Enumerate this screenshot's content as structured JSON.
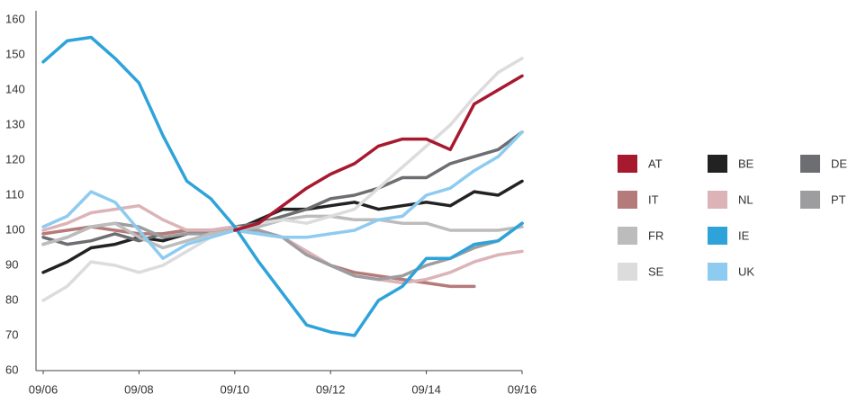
{
  "chart_data": {
    "type": "line",
    "categories": [
      "09/06",
      null,
      null,
      null,
      "09/08",
      null,
      null,
      null,
      "09/10",
      null,
      null,
      null,
      "09/12",
      null,
      null,
      null,
      "09/14",
      null,
      null,
      null,
      "09/16"
    ],
    "ylim": [
      60,
      160
    ],
    "yticks": [
      60,
      70,
      80,
      90,
      100,
      110,
      120,
      130,
      140,
      150,
      160
    ],
    "legend": "right",
    "series": [
      {
        "name": "AT",
        "color": "#a6192e",
        "values": [
          null,
          null,
          null,
          null,
          null,
          null,
          null,
          null,
          100,
          102,
          107,
          112,
          116,
          119,
          124,
          126,
          126,
          123,
          136,
          140,
          144
        ]
      },
      {
        "name": "BE",
        "color": "#222222",
        "values": [
          88,
          91,
          95,
          96,
          98,
          97,
          99,
          100,
          100,
          103,
          106,
          106,
          107,
          108,
          106,
          107,
          108,
          107,
          111,
          110,
          114
        ]
      },
      {
        "name": "DE",
        "color": "#6d6e71",
        "values": [
          98,
          96,
          97,
          99,
          97,
          99,
          100,
          100,
          101,
          102,
          104,
          106,
          109,
          110,
          112,
          115,
          115,
          119,
          121,
          123,
          128
        ]
      },
      {
        "name": "IT",
        "color": "#b57a7a",
        "values": [
          99,
          100,
          101,
          100,
          99,
          99,
          100,
          100,
          100,
          99,
          98,
          94,
          90,
          88,
          87,
          86,
          85,
          84,
          84,
          null,
          null
        ]
      },
      {
        "name": "NL",
        "color": "#dcb4b8",
        "values": [
          100,
          102,
          105,
          106,
          107,
          103,
          100,
          100,
          101,
          100,
          98,
          94,
          90,
          87,
          86,
          85,
          86,
          88,
          91,
          93,
          94
        ]
      },
      {
        "name": "PT",
        "color": "#9d9d9f",
        "values": [
          96,
          98,
          101,
          102,
          101,
          98,
          99,
          99,
          100,
          100,
          98,
          93,
          90,
          87,
          86,
          87,
          90,
          92,
          95,
          97,
          102
        ]
      },
      {
        "name": "FR",
        "color": "#bcbcbc",
        "values": [
          96,
          98,
          101,
          102,
          98,
          95,
          97,
          99,
          100,
          101,
          103,
          104,
          104,
          103,
          103,
          102,
          102,
          100,
          100,
          100,
          101
        ]
      },
      {
        "name": "IE",
        "color": "#2ea3da",
        "values": [
          148,
          154,
          155,
          149,
          142,
          127,
          114,
          109,
          101,
          91,
          82,
          73,
          71,
          70,
          80,
          84,
          92,
          92,
          96,
          97,
          102
        ]
      },
      {
        "name": "SE",
        "color": "#dcdcdc",
        "values": [
          80,
          84,
          91,
          90,
          88,
          90,
          94,
          98,
          100,
          102,
          103,
          102,
          104,
          106,
          112,
          118,
          124,
          130,
          138,
          145,
          149
        ]
      },
      {
        "name": "UK",
        "color": "#8ecbf0",
        "values": [
          101,
          104,
          111,
          108,
          100,
          92,
          96,
          98,
          100,
          99,
          98,
          98,
          99,
          100,
          103,
          104,
          110,
          112,
          117,
          121,
          128
        ]
      }
    ]
  }
}
